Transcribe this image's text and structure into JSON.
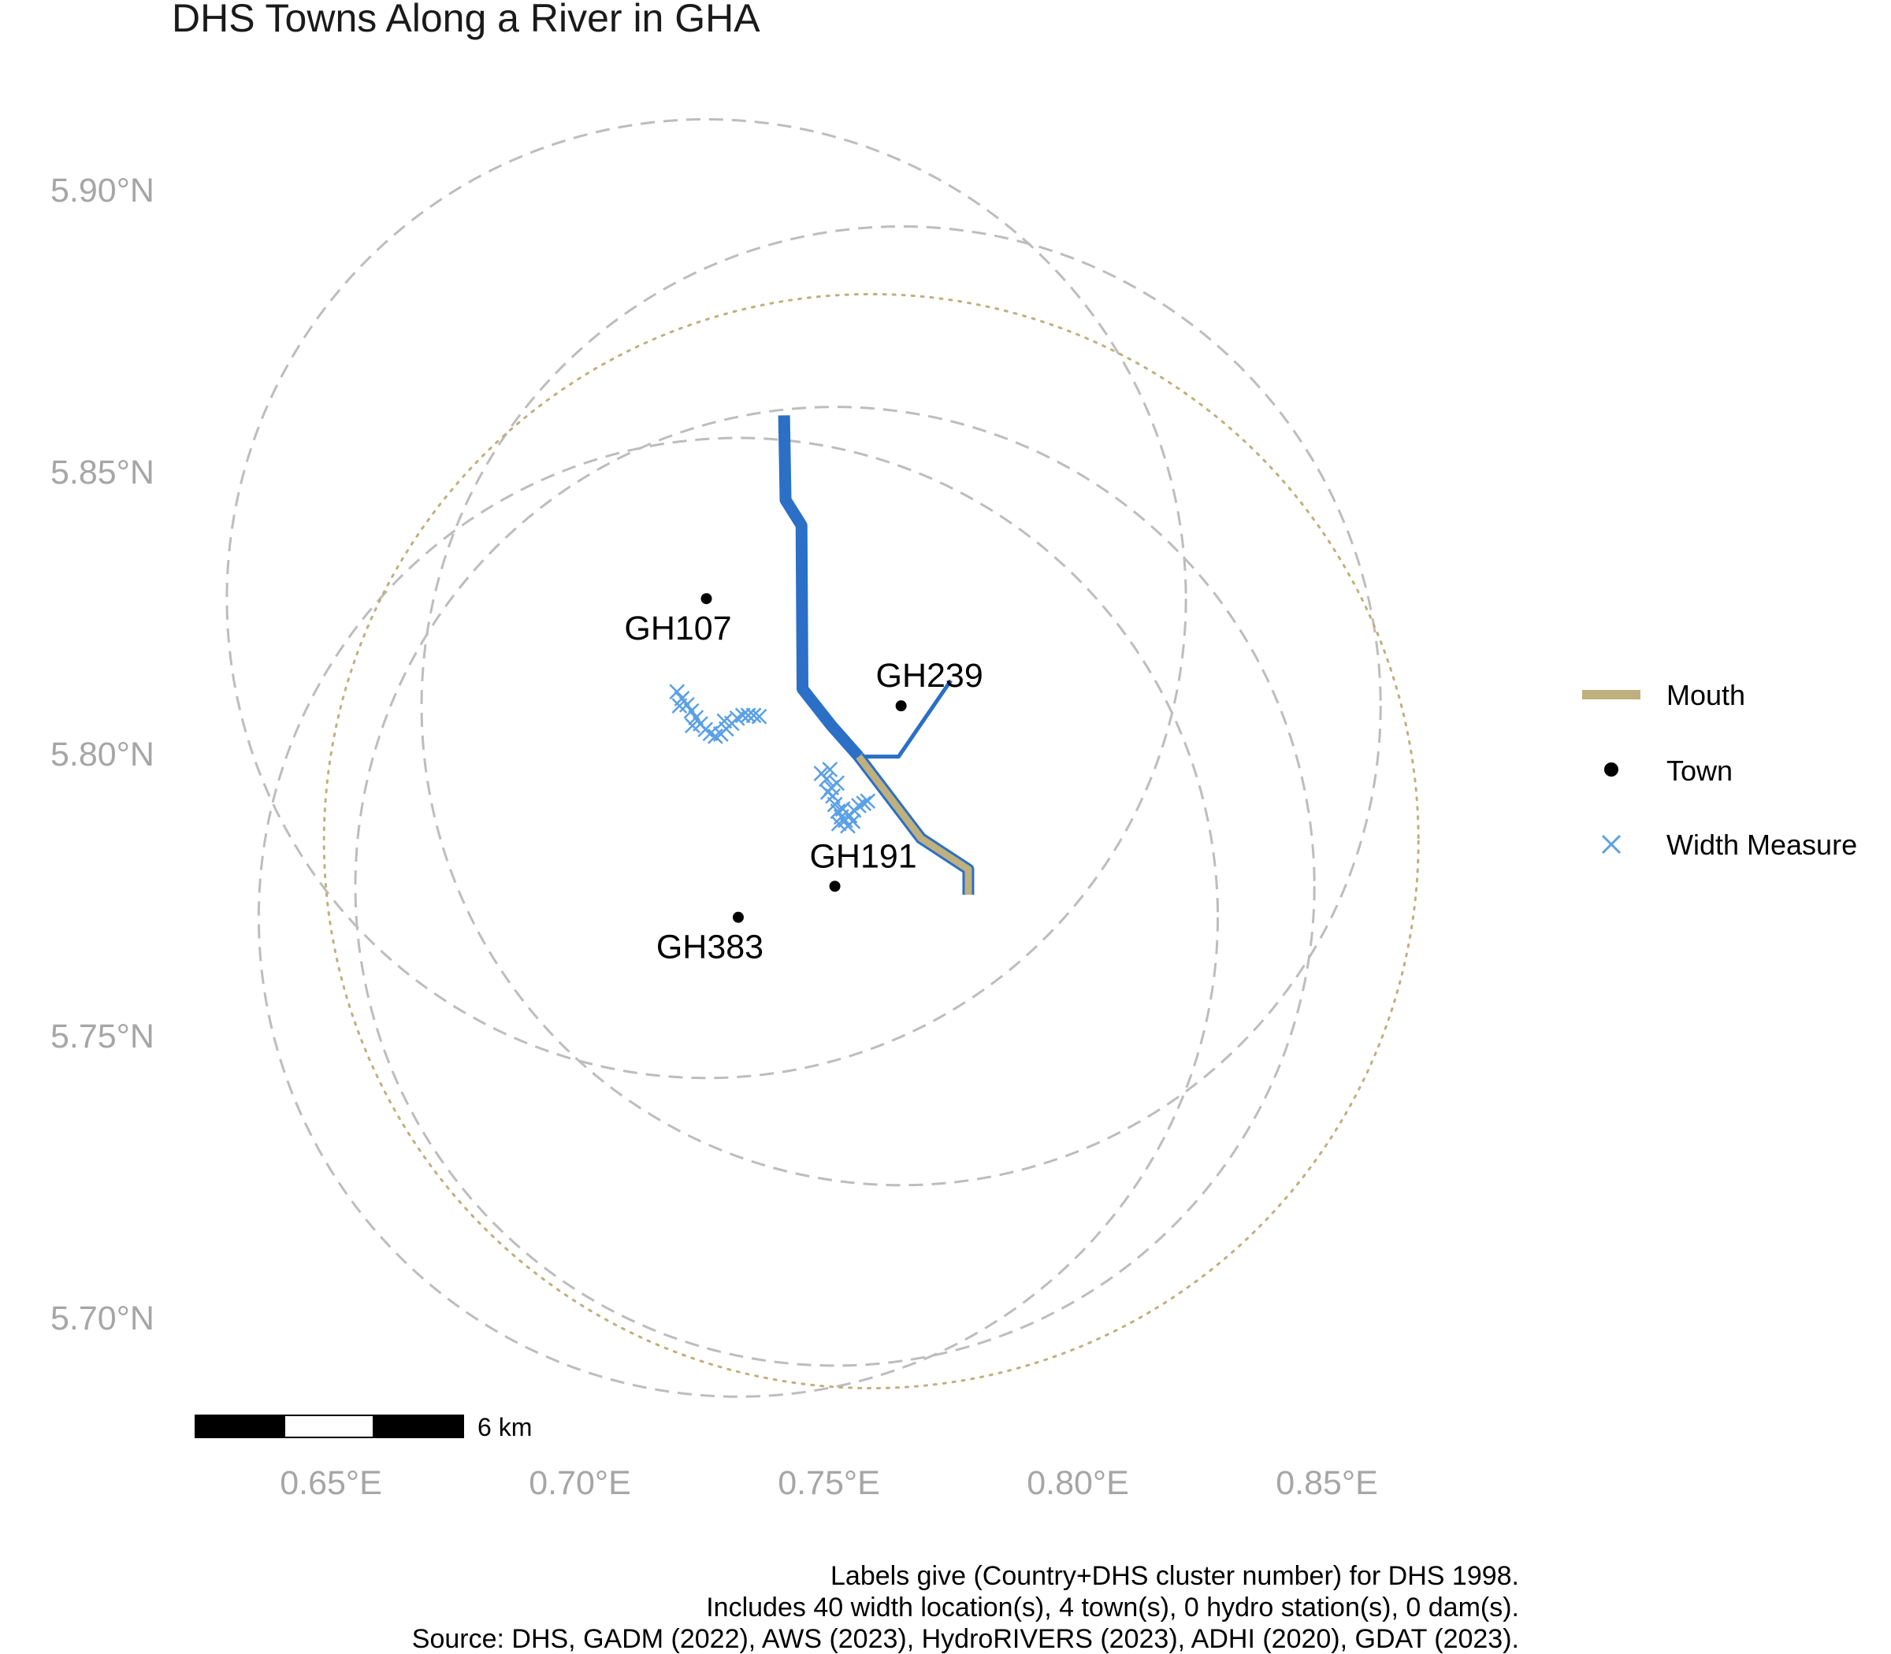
{
  "title": "DHS Towns Along a River in GHA",
  "axes": {
    "x_ticks": [
      {
        "value": 0.65,
        "label": "0.65°E"
      },
      {
        "value": 0.7,
        "label": "0.70°E"
      },
      {
        "value": 0.75,
        "label": "0.75°E"
      },
      {
        "value": 0.8,
        "label": "0.80°E"
      },
      {
        "value": 0.85,
        "label": "0.85°E"
      }
    ],
    "y_ticks": [
      {
        "value": 5.9,
        "label": "5.90°N"
      },
      {
        "value": 5.85,
        "label": "5.85°N"
      },
      {
        "value": 5.8,
        "label": "5.80°N"
      },
      {
        "value": 5.75,
        "label": "5.75°N"
      },
      {
        "value": 5.7,
        "label": "5.70°N"
      }
    ]
  },
  "towns": [
    {
      "id": "GH107",
      "lon": 0.7254,
      "lat": 5.8275
    },
    {
      "id": "GH239",
      "lon": 0.7645,
      "lat": 5.8085
    },
    {
      "id": "GH191",
      "lon": 0.7512,
      "lat": 5.7765
    },
    {
      "id": "GH383",
      "lon": 0.7318,
      "lat": 5.771
    }
  ],
  "buffers_dashed": [
    {
      "lon": 0.7254,
      "lat": 5.8275,
      "r_lat": 0.085
    },
    {
      "lon": 0.7645,
      "lat": 5.8085,
      "r_lat": 0.085
    },
    {
      "lon": 0.7512,
      "lat": 5.7765,
      "r_lat": 0.085
    },
    {
      "lon": 0.7318,
      "lat": 5.771,
      "r_lat": 0.085
    }
  ],
  "buffer_mouth": {
    "lon": 0.7585,
    "lat": 5.7845,
    "r_lat": 0.097
  },
  "rivers": {
    "main": {
      "color": "#2b6fc6",
      "coords": [
        [
          0.741,
          5.86
        ],
        [
          0.7413,
          5.845
        ],
        [
          0.7445,
          5.8405
        ],
        [
          0.7447,
          5.8115
        ],
        [
          0.7505,
          5.805
        ],
        [
          0.756,
          5.7995
        ]
      ]
    },
    "tributary": {
      "color": "#2b6fc6",
      "coords": [
        [
          0.756,
          5.7995
        ],
        [
          0.764,
          5.7995
        ],
        [
          0.7745,
          5.813
        ]
      ]
    },
    "mouth": {
      "color": "#bfb07e",
      "coords": [
        [
          0.756,
          5.7995
        ],
        [
          0.7685,
          5.785
        ],
        [
          0.778,
          5.7795
        ],
        [
          0.778,
          5.775
        ]
      ]
    }
  },
  "width_measures": {
    "color": "#5aa0e6",
    "points": [
      [
        0.7195,
        5.811
      ],
      [
        0.7205,
        5.8098
      ],
      [
        0.7215,
        5.8087
      ],
      [
        0.7224,
        5.8076
      ],
      [
        0.7233,
        5.8064
      ],
      [
        0.7242,
        5.8053
      ],
      [
        0.7252,
        5.8043
      ],
      [
        0.7262,
        5.8036
      ],
      [
        0.7272,
        5.8031
      ],
      [
        0.7283,
        5.8035
      ],
      [
        0.7294,
        5.8044
      ],
      [
        0.7305,
        5.8054
      ],
      [
        0.7316,
        5.8063
      ],
      [
        0.7327,
        5.8068
      ],
      [
        0.7338,
        5.8068
      ],
      [
        0.7349,
        5.8068
      ],
      [
        0.736,
        5.8066
      ],
      [
        0.72,
        5.8085
      ],
      [
        0.7226,
        5.805
      ],
      [
        0.729,
        5.8058
      ],
      [
        0.7485,
        5.7965
      ],
      [
        0.7495,
        5.7955
      ],
      [
        0.7505,
        5.794
      ],
      [
        0.7508,
        5.7925
      ],
      [
        0.7512,
        5.791
      ],
      [
        0.7518,
        5.7898
      ],
      [
        0.7525,
        5.7888
      ],
      [
        0.7533,
        5.7882
      ],
      [
        0.7542,
        5.789
      ],
      [
        0.755,
        5.79
      ],
      [
        0.756,
        5.7908
      ],
      [
        0.757,
        5.7912
      ],
      [
        0.7578,
        5.7916
      ],
      [
        0.7502,
        5.7972
      ],
      [
        0.7516,
        5.7948
      ],
      [
        0.7528,
        5.7902
      ],
      [
        0.7538,
        5.7872
      ],
      [
        0.7548,
        5.788
      ],
      [
        0.752,
        5.7876
      ],
      [
        0.7498,
        5.7932
      ]
    ]
  },
  "legend": {
    "mouth_label": "Mouth",
    "town_label": "Town",
    "width_label": "Width Measure",
    "mouth_color": "#bfb07e",
    "width_color": "#5aa0e6"
  },
  "scale_bar": {
    "label": "6 km"
  },
  "caption": {
    "line1": "Labels give (Country+DHS cluster number) for DHS 1998.",
    "line2": "Includes 40 width location(s), 4 town(s), 0 hydro station(s), 0 dam(s).",
    "line3": "Source: DHS, GADM (2022), AWS (2023), HydroRIVERS (2023), ADHI (2020), GDAT (2023)."
  }
}
